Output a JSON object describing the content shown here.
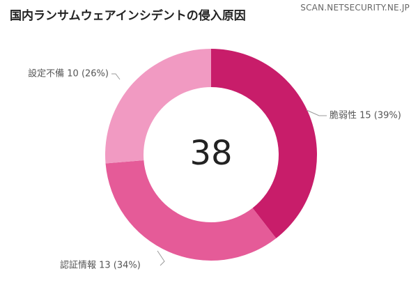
{
  "header": {
    "title": "国内ランサムウェアインシデントの侵入原因",
    "watermark": "SCAN.NETSECURITY.NE.JP"
  },
  "chart_data": {
    "type": "pie",
    "variant": "donut",
    "title": "国内ランサムウェアインシデントの侵入原因",
    "center_total": "38",
    "slices": [
      {
        "label": "脆弱性 15 (39%)",
        "category": "脆弱性",
        "value": 15,
        "percent": 39,
        "color": "#c81d6a"
      },
      {
        "label": "認証情報 13 (34%)",
        "category": "認証情報",
        "value": 13,
        "percent": 34,
        "color": "#e55b98"
      },
      {
        "label": "設定不備 10 (26%)",
        "category": "設定不備",
        "value": 10,
        "percent": 26,
        "color": "#f19ac2"
      }
    ]
  }
}
